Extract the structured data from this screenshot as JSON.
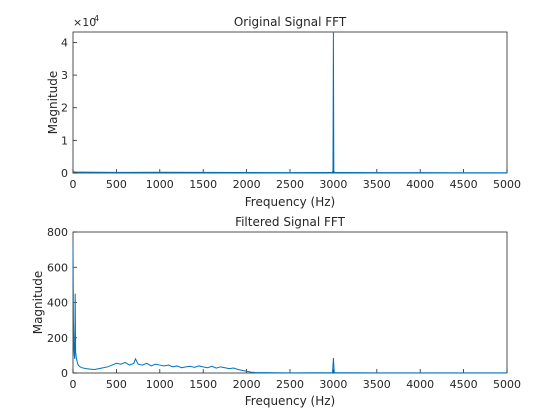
{
  "chart_data": [
    {
      "type": "line",
      "title": "Original Signal FFT",
      "xlabel": "Frequency (Hz)",
      "ylabel": "Magnitude",
      "xlim": [
        0,
        5000
      ],
      "ylim": [
        0,
        43200
      ],
      "xticks": [
        "0",
        "500",
        "1000",
        "1500",
        "2000",
        "2500",
        "3000",
        "3500",
        "4000",
        "4500",
        "5000"
      ],
      "yticks": [
        "0",
        "1",
        "2",
        "3",
        "4"
      ],
      "y_exponent": "10^4",
      "grid": false,
      "series_color": "#0072BD",
      "x": [
        0,
        20,
        100,
        500,
        1000,
        1500,
        2000,
        2500,
        2990,
        2995,
        3000,
        3005,
        3010,
        3500,
        4000,
        4500,
        5000
      ],
      "y": [
        400,
        300,
        250,
        200,
        220,
        180,
        150,
        120,
        200,
        800,
        43200,
        800,
        200,
        100,
        100,
        80,
        80
      ]
    },
    {
      "type": "line",
      "title": "Filtered Signal FFT",
      "xlabel": "Frequency (Hz)",
      "ylabel": "Magnitude",
      "xlim": [
        0,
        5000
      ],
      "ylim": [
        0,
        800
      ],
      "xticks": [
        "0",
        "500",
        "1000",
        "1500",
        "2000",
        "2500",
        "3000",
        "3500",
        "4000",
        "4500",
        "5000"
      ],
      "yticks": [
        "0",
        "200",
        "400",
        "600",
        "800"
      ],
      "grid": false,
      "series_color": "#0072BD",
      "x": [
        0,
        5,
        10,
        15,
        20,
        25,
        30,
        40,
        50,
        60,
        80,
        100,
        120,
        150,
        200,
        250,
        300,
        350,
        400,
        450,
        500,
        550,
        600,
        650,
        700,
        720,
        750,
        800,
        850,
        900,
        950,
        1000,
        1050,
        1100,
        1150,
        1200,
        1250,
        1300,
        1350,
        1400,
        1450,
        1500,
        1550,
        1600,
        1650,
        1700,
        1750,
        1800,
        1850,
        1900,
        1950,
        2000,
        2050,
        2100,
        2200,
        2500,
        2990,
        3000,
        3010,
        3500,
        4000,
        4500,
        5000
      ],
      "y": [
        720,
        300,
        150,
        100,
        80,
        450,
        120,
        80,
        60,
        45,
        35,
        30,
        28,
        25,
        22,
        20,
        25,
        30,
        35,
        45,
        55,
        50,
        60,
        45,
        55,
        80,
        50,
        45,
        55,
        40,
        50,
        45,
        40,
        45,
        35,
        40,
        30,
        35,
        38,
        32,
        40,
        35,
        30,
        38,
        28,
        35,
        30,
        25,
        28,
        20,
        15,
        10,
        5,
        3,
        2,
        1,
        2,
        85,
        2,
        1,
        1,
        1,
        1
      ]
    }
  ]
}
